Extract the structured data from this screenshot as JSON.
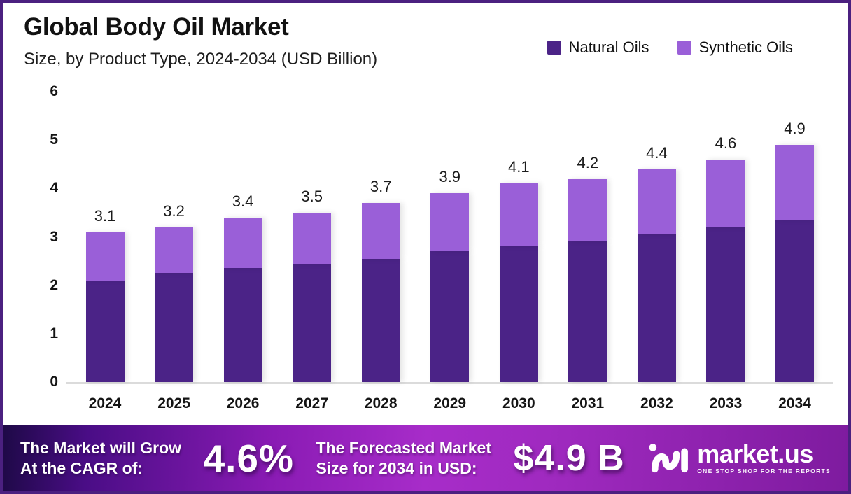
{
  "header": {
    "title": "Global Body Oil Market",
    "subtitle": "Size, by Product Type, 2024-2034 (USD Billion)"
  },
  "legend": [
    {
      "label": "Natural Oils",
      "color": "#4B2387"
    },
    {
      "label": "Synthetic Oils",
      "color": "#9A5FD8"
    }
  ],
  "chart_data": {
    "type": "bar",
    "stacked": true,
    "title": "Global Body Oil Market Size, by Product Type, 2024-2034 (USD Billion)",
    "categories": [
      "2024",
      "2025",
      "2026",
      "2027",
      "2028",
      "2029",
      "2030",
      "2031",
      "2032",
      "2033",
      "2034"
    ],
    "series": [
      {
        "name": "Natural Oils",
        "color": "#4B2387",
        "values": [
          2.1,
          2.25,
          2.35,
          2.45,
          2.55,
          2.7,
          2.8,
          2.9,
          3.05,
          3.2,
          3.35
        ]
      },
      {
        "name": "Synthetic Oils",
        "color": "#9A5FD8",
        "values": [
          1.0,
          0.95,
          1.05,
          1.05,
          1.15,
          1.2,
          1.3,
          1.3,
          1.35,
          1.4,
          1.55
        ]
      }
    ],
    "totals": [
      3.1,
      3.2,
      3.4,
      3.5,
      3.7,
      3.9,
      4.1,
      4.2,
      4.4,
      4.6,
      4.9
    ],
    "total_labels": [
      "3.1",
      "3.2",
      "3.4",
      "3.5",
      "3.7",
      "3.9",
      "4.1",
      "4.2",
      "4.4",
      "4.6",
      "4.9"
    ],
    "ylim": [
      0,
      6
    ],
    "yticks": [
      0,
      1,
      2,
      3,
      4,
      5,
      6
    ],
    "grid": false,
    "legend_position": "top-right"
  },
  "banner": {
    "cagr_label_line1": "The Market will Grow",
    "cagr_label_line2": "At the CAGR of:",
    "cagr_value": "4.6%",
    "forecast_label_line1": "The Forecasted Market",
    "forecast_label_line2": "Size for 2034 in USD:",
    "forecast_value": "$4.9 B",
    "logo_text": "market.us",
    "logo_tagline": "ONE STOP SHOP FOR THE REPORTS"
  },
  "colors": {
    "natural": "#4B2387",
    "synthetic": "#9A5FD8",
    "frame_border": "#4B2080",
    "axis_line": "#DBDBDB",
    "banner_gradient_start": "#1E0947",
    "banner_gradient_mid": "#A72CC9",
    "banner_gradient_end": "#7E1B9F"
  }
}
